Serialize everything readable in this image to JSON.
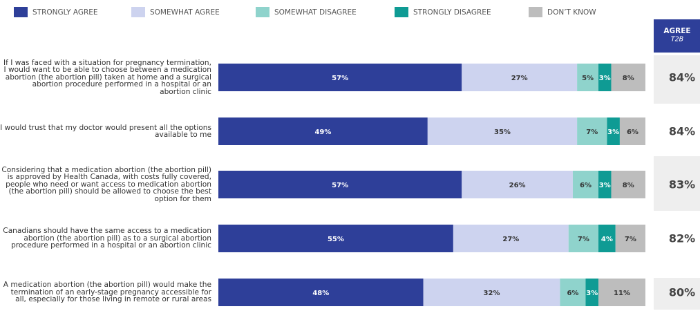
{
  "chart_data": {
    "type": "bar",
    "orientation": "horizontal",
    "stacked": true,
    "xlim": [
      0,
      100
    ],
    "legend": "top",
    "categories": [
      "If I was faced with a situation for pregnancy termination, I would want to be able to choose between a medication abortion (the abortion pill) taken at home and a surgical abortion procedure performed in a hospital or an abortion clinic",
      "I would trust that my doctor would present all the options available to me",
      "Considering that a medication abortion (the abortion pill) is approved by Health Canada, with costs fully covered, people who need or want access to medication abortion (the abortion pill) should be allowed to choose the best option for them",
      "Canadians should have the same access to a medication abortion (the abortion pill) as to a surgical abortion procedure performed in a hospital or an abortion clinic",
      "A medication abortion (the abortion pill) would make the termination of an early-stage pregnancy accessible for all, especially for those living in remote or rural areas"
    ],
    "series": [
      {
        "name": "STRONGLY AGREE",
        "color": "#2e3f99",
        "label_color": "#ffffff",
        "values": [
          57,
          49,
          57,
          55,
          48
        ],
        "value_labels": [
          "57%",
          "49%",
          "57%",
          "55%",
          "48%"
        ]
      },
      {
        "name": "SOMEWHAT AGREE",
        "color": "#cdd3ef",
        "label_color": "#333333",
        "values": [
          27,
          35,
          26,
          27,
          32
        ],
        "value_labels": [
          "27%",
          "35%",
          "26%",
          "27%",
          "32%"
        ]
      },
      {
        "name": "SOMEWHAT DISAGREE",
        "color": "#8fd3cc",
        "label_color": "#333333",
        "values": [
          5,
          7,
          6,
          7,
          6
        ],
        "value_labels": [
          "5%",
          "7%",
          "6%",
          "7%",
          "6%"
        ]
      },
      {
        "name": "STRONGLY DISAGREE",
        "color": "#0f9b94",
        "label_color": "#ffffff",
        "values": [
          3,
          3,
          3,
          4,
          3
        ],
        "value_labels": [
          "3%",
          "3%",
          "3%",
          "4%",
          "3%"
        ]
      },
      {
        "name": "DON’T KNOW",
        "color": "#bdbdbd",
        "label_color": "#333333",
        "values": [
          8,
          6,
          8,
          7,
          11
        ],
        "value_labels": [
          "8%",
          "6%",
          "8%",
          "7%",
          "11%"
        ]
      }
    ],
    "t2b": {
      "title": "AGREE",
      "subtitle": "T2B",
      "color": "#2e3f99",
      "values": [
        84,
        84,
        83,
        82,
        80
      ],
      "value_labels": [
        "84%",
        "84%",
        "83%",
        "82%",
        "80%"
      ]
    }
  }
}
